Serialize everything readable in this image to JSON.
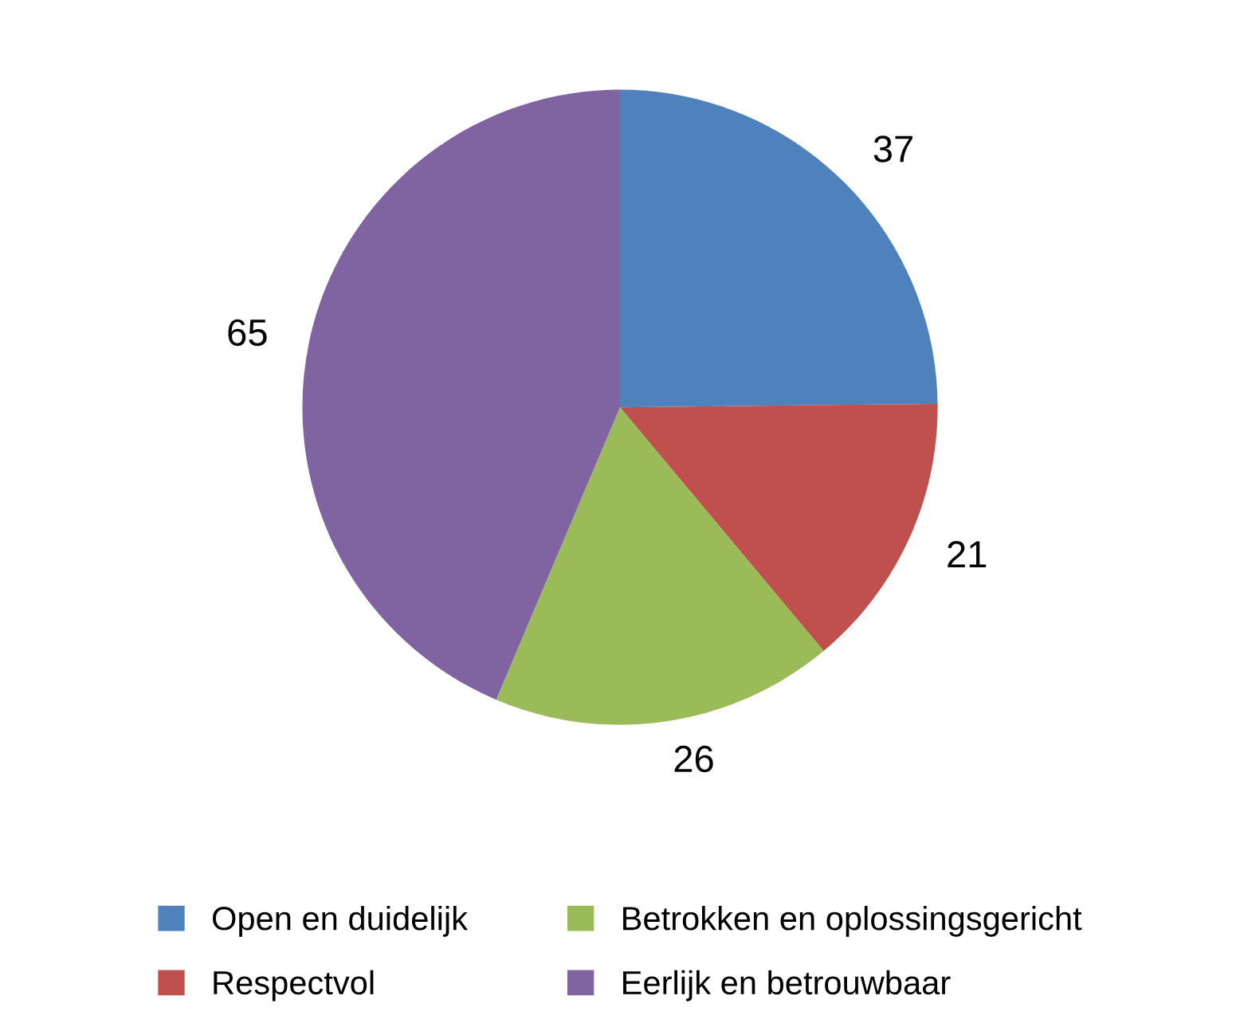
{
  "chart_data": {
    "type": "pie",
    "categories": [
      "Open en duidelijk",
      "Respectvol",
      "Betrokken en oplossingsgericht",
      "Eerlijk en betrouwbaar"
    ],
    "values": [
      37,
      21,
      26,
      65
    ],
    "colors": [
      "#4f81bd",
      "#c0504d",
      "#9bbb59",
      "#8064a2"
    ],
    "data_labels": true,
    "legend": "bottom"
  }
}
